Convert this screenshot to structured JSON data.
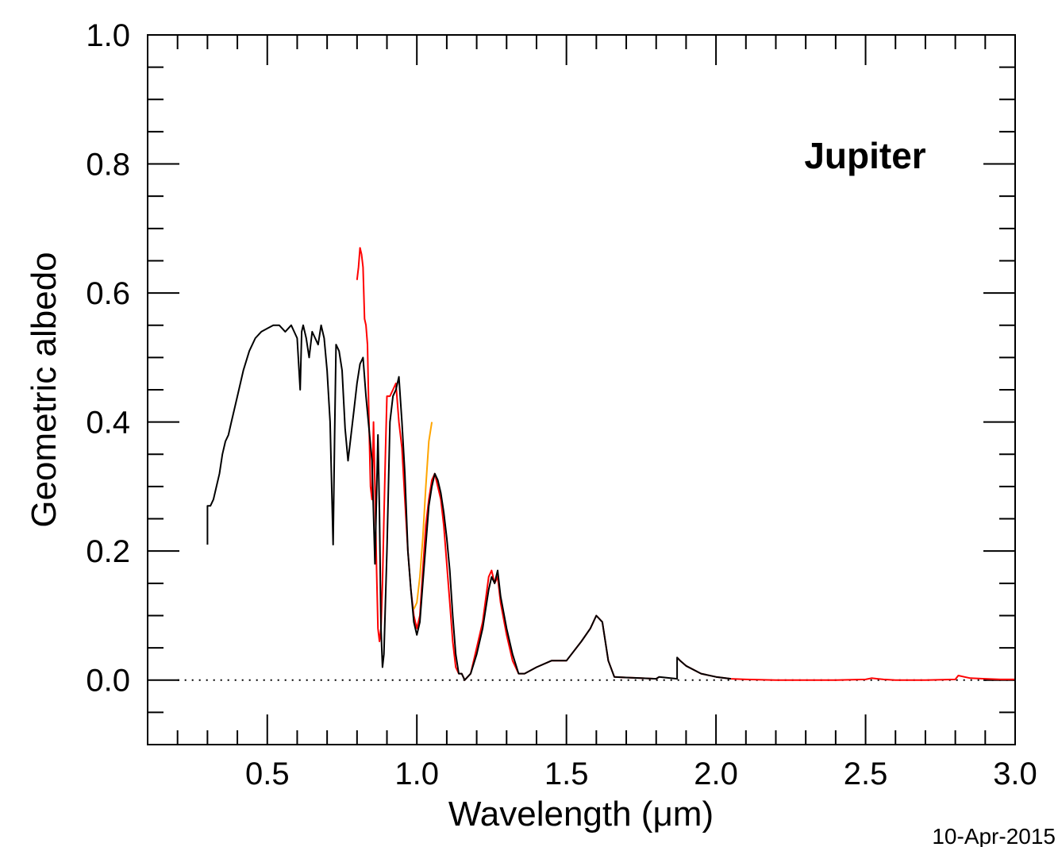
{
  "chart_data": {
    "type": "line",
    "title": "",
    "annotation": "Jupiter",
    "xlabel": "Wavelength (μm)",
    "ylabel": "Geometric albedo",
    "footer": "10-Apr-2015",
    "xlim": [
      0.1,
      3.0
    ],
    "ylim": [
      -0.1,
      1.0
    ],
    "x_ticks": [
      "0.5",
      "1.0",
      "1.5",
      "2.0",
      "2.5",
      "3.0"
    ],
    "y_ticks": [
      "0.0",
      "0.2",
      "0.4",
      "0.6",
      "0.8",
      "1.0"
    ],
    "x_tick_values": [
      0.5,
      1.0,
      1.5,
      2.0,
      2.5,
      3.0
    ],
    "y_tick_values": [
      0.0,
      0.2,
      0.4,
      0.6,
      0.8,
      1.0
    ],
    "x_minor_step": 0.1,
    "y_minor_step": 0.05,
    "zero_line": {
      "y": 0.0,
      "style": "dotted",
      "x_range": [
        0.2,
        3.0
      ]
    },
    "colors": {
      "black": "#000000",
      "red": "#ff0000",
      "orange": "#ffa500"
    },
    "series": [
      {
        "color": "#ff0000",
        "x": [
          0.8,
          0.805,
          0.81,
          0.815,
          0.82,
          0.825,
          0.83,
          0.835,
          0.84,
          0.845,
          0.85,
          0.855,
          0.86,
          0.865,
          0.87,
          0.875,
          0.88,
          0.885,
          0.89,
          0.895,
          0.9,
          0.91,
          0.92,
          0.93,
          0.94,
          0.95,
          0.96,
          0.97,
          0.98,
          0.99,
          1.0,
          1.01,
          1.02,
          1.03,
          1.04,
          1.05,
          1.06,
          1.07,
          1.08,
          1.09,
          1.1,
          1.11,
          1.12,
          1.13,
          1.14,
          1.15,
          1.16,
          1.18,
          1.2,
          1.22,
          1.24,
          1.25,
          1.26,
          1.27,
          1.28,
          1.3,
          1.32,
          1.34,
          1.36,
          1.4,
          1.45,
          1.5,
          1.55,
          1.58,
          1.6,
          1.62,
          1.64,
          1.66,
          1.7,
          1.75,
          1.8,
          1.81
        ],
        "y": [
          0.62,
          0.64,
          0.67,
          0.66,
          0.64,
          0.56,
          0.55,
          0.52,
          0.4,
          0.3,
          0.28,
          0.4,
          0.3,
          0.18,
          0.08,
          0.06,
          0.08,
          0.15,
          0.25,
          0.35,
          0.44,
          0.44,
          0.45,
          0.46,
          0.4,
          0.36,
          0.28,
          0.2,
          0.14,
          0.1,
          0.08,
          0.1,
          0.17,
          0.24,
          0.28,
          0.31,
          0.32,
          0.3,
          0.28,
          0.24,
          0.18,
          0.12,
          0.06,
          0.02,
          0.01,
          0.01,
          0.0,
          0.01,
          0.05,
          0.09,
          0.16,
          0.17,
          0.15,
          0.16,
          0.12,
          0.07,
          0.03,
          0.01,
          0.01,
          0.02,
          0.03,
          0.03,
          0.06,
          0.08,
          0.1,
          0.09,
          0.03,
          0.005,
          0.004,
          0.003,
          0.002,
          0.005
        ]
      },
      {
        "color": "#ffa500",
        "x": [
          0.99,
          1.0,
          1.01,
          1.02,
          1.03,
          1.04,
          1.05
        ],
        "y": [
          0.11,
          0.12,
          0.16,
          0.22,
          0.3,
          0.37,
          0.4
        ]
      },
      {
        "color": "#ff0000",
        "x": [
          1.87,
          1.88,
          1.9,
          1.95,
          2.0,
          2.05,
          2.1,
          2.2,
          2.3,
          2.4,
          2.5,
          2.52,
          2.54,
          2.56,
          2.6,
          2.7,
          2.8,
          2.81,
          2.83,
          2.85,
          2.9,
          2.95,
          3.0
        ],
        "y": [
          0.035,
          0.03,
          0.022,
          0.01,
          0.005,
          0.002,
          0.001,
          0.0,
          0.0,
          0.0,
          0.001,
          0.003,
          0.002,
          0.001,
          0.0,
          0.0,
          0.001,
          0.007,
          0.005,
          0.003,
          0.002,
          0.001,
          0.001
        ]
      },
      {
        "color": "#000000",
        "x": [
          0.3,
          0.3,
          0.31,
          0.32,
          0.33,
          0.34,
          0.35,
          0.36,
          0.37,
          0.38,
          0.39,
          0.4,
          0.42,
          0.44,
          0.46,
          0.48,
          0.5,
          0.52,
          0.54,
          0.56,
          0.58,
          0.6,
          0.61,
          0.615,
          0.62,
          0.63,
          0.64,
          0.65,
          0.66,
          0.67,
          0.68,
          0.69,
          0.7,
          0.71,
          0.72,
          0.725,
          0.73,
          0.74,
          0.75,
          0.76,
          0.77,
          0.78,
          0.79,
          0.8,
          0.81,
          0.82,
          0.83,
          0.84,
          0.85,
          0.86,
          0.87,
          0.875,
          0.88,
          0.885,
          0.89,
          0.9,
          0.91,
          0.92,
          0.93,
          0.94,
          0.95,
          0.96,
          0.97,
          0.98,
          0.99,
          1.0,
          1.01,
          1.02,
          1.03,
          1.04,
          1.05,
          1.06,
          1.07,
          1.08,
          1.09,
          1.1,
          1.11,
          1.12,
          1.13,
          1.14,
          1.15,
          1.16,
          1.18,
          1.2,
          1.22,
          1.24,
          1.25,
          1.26,
          1.27,
          1.28,
          1.3,
          1.32,
          1.34,
          1.36,
          1.4,
          1.45,
          1.5,
          1.55,
          1.58,
          1.6,
          1.62,
          1.64,
          1.66,
          1.7,
          1.75,
          1.8,
          1.81,
          1.87,
          1.87,
          1.88,
          1.9,
          1.95,
          2.0,
          2.05
        ],
        "y": [
          0.21,
          0.27,
          0.27,
          0.28,
          0.3,
          0.32,
          0.35,
          0.37,
          0.38,
          0.4,
          0.42,
          0.44,
          0.48,
          0.51,
          0.53,
          0.54,
          0.545,
          0.55,
          0.55,
          0.54,
          0.55,
          0.53,
          0.45,
          0.54,
          0.55,
          0.53,
          0.5,
          0.54,
          0.53,
          0.52,
          0.55,
          0.53,
          0.48,
          0.4,
          0.21,
          0.38,
          0.52,
          0.51,
          0.48,
          0.39,
          0.34,
          0.38,
          0.42,
          0.46,
          0.49,
          0.5,
          0.44,
          0.39,
          0.34,
          0.18,
          0.38,
          0.26,
          0.08,
          0.02,
          0.04,
          0.2,
          0.4,
          0.44,
          0.45,
          0.47,
          0.4,
          0.32,
          0.2,
          0.14,
          0.09,
          0.07,
          0.09,
          0.15,
          0.21,
          0.27,
          0.3,
          0.32,
          0.31,
          0.29,
          0.26,
          0.22,
          0.17,
          0.1,
          0.04,
          0.01,
          0.01,
          0.0,
          0.01,
          0.04,
          0.08,
          0.14,
          0.16,
          0.15,
          0.17,
          0.13,
          0.08,
          0.04,
          0.01,
          0.01,
          0.02,
          0.03,
          0.03,
          0.06,
          0.08,
          0.1,
          0.09,
          0.03,
          0.005,
          0.004,
          0.003,
          0.002,
          0.005,
          0.002,
          0.035,
          0.03,
          0.022,
          0.01,
          0.005,
          0.002
        ]
      }
    ]
  }
}
